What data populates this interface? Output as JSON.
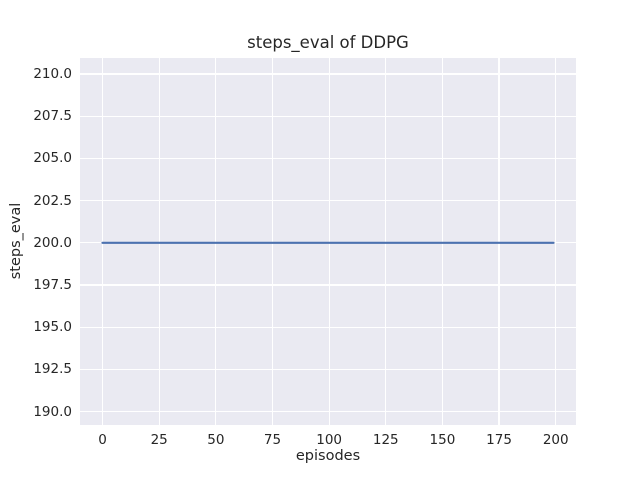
{
  "chart_data": {
    "type": "line",
    "title": "steps_eval of DDPG",
    "xlabel": "episodes",
    "ylabel": "steps_eval",
    "grid": true,
    "legend": "none",
    "plot_bg_color": "#eaeaf2",
    "grid_color": "#ffffff",
    "text_color": "#262626",
    "xlim": [
      -9.95,
      208.95
    ],
    "ylim": [
      189.2,
      210.95
    ],
    "x_ticks": [
      {
        "value": 0,
        "label": "0"
      },
      {
        "value": 25,
        "label": "25"
      },
      {
        "value": 50,
        "label": "50"
      },
      {
        "value": 75,
        "label": "75"
      },
      {
        "value": 100,
        "label": "100"
      },
      {
        "value": 125,
        "label": "125"
      },
      {
        "value": 150,
        "label": "150"
      },
      {
        "value": 175,
        "label": "175"
      },
      {
        "value": 200,
        "label": "200"
      }
    ],
    "y_ticks": [
      {
        "value": 190.0,
        "label": "190.0"
      },
      {
        "value": 192.5,
        "label": "192.5"
      },
      {
        "value": 195.0,
        "label": "195.0"
      },
      {
        "value": 197.5,
        "label": "197.5"
      },
      {
        "value": 200.0,
        "label": "200.0"
      },
      {
        "value": 202.5,
        "label": "202.5"
      },
      {
        "value": 205.0,
        "label": "205.0"
      },
      {
        "value": 207.5,
        "label": "207.5"
      },
      {
        "value": 210.0,
        "label": "210.0"
      }
    ],
    "series": [
      {
        "name": "steps_eval",
        "color": "#4c72b0",
        "line_width": 2.2,
        "description": "constant value 200 for every evaluated episode",
        "x": [
          0,
          199
        ],
        "y": [
          200,
          200
        ]
      }
    ]
  }
}
